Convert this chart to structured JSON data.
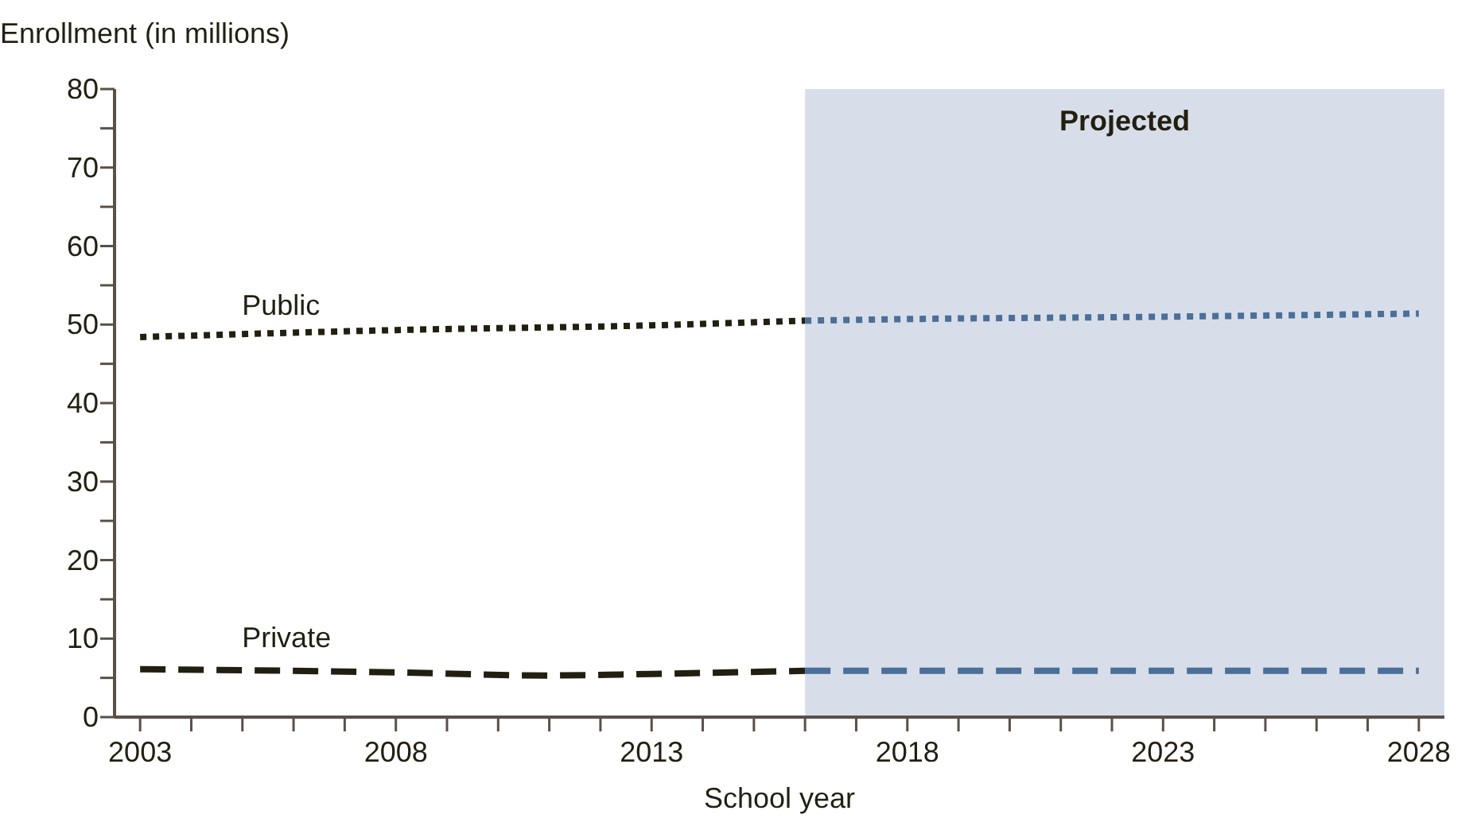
{
  "chart_data": {
    "type": "line",
    "xlabel": "School year",
    "ylabel": "Enrollment (in millions)",
    "xlim": [
      2002.5,
      2028.5
    ],
    "ylim": [
      0,
      80
    ],
    "xticks": [
      2003,
      {
        "value": 2004,
        "label": null
      },
      {
        "value": 2005,
        "label": null
      },
      {
        "value": 2006,
        "label": null
      },
      {
        "value": 2007,
        "label": null
      },
      2008,
      {
        "value": 2009,
        "label": null
      },
      {
        "value": 2010,
        "label": null
      },
      {
        "value": 2011,
        "label": null
      },
      {
        "value": 2012,
        "label": null
      },
      2013,
      {
        "value": 2014,
        "label": null
      },
      {
        "value": 2015,
        "label": null
      },
      {
        "value": 2016,
        "label": null
      },
      {
        "value": 2017,
        "label": null
      },
      2018,
      {
        "value": 2019,
        "label": null
      },
      {
        "value": 2020,
        "label": null
      },
      {
        "value": 2021,
        "label": null
      },
      {
        "value": 2022,
        "label": null
      },
      2023,
      {
        "value": 2024,
        "label": null
      },
      {
        "value": 2025,
        "label": null
      },
      {
        "value": 2026,
        "label": null
      },
      {
        "value": 2027,
        "label": null
      },
      2028
    ],
    "yticks": [
      0,
      {
        "value": 5,
        "label": null
      },
      10,
      {
        "value": 15,
        "label": null
      },
      20,
      {
        "value": 25,
        "label": null
      },
      30,
      {
        "value": 35,
        "label": null
      },
      40,
      {
        "value": 45,
        "label": null
      },
      50,
      {
        "value": 55,
        "label": null
      },
      60,
      {
        "value": 65,
        "label": null
      },
      70,
      {
        "value": 75,
        "label": null
      },
      80
    ],
    "grid": false,
    "bands": [
      {
        "axis": "x",
        "from": 2016,
        "to": 2028.5,
        "label": "Projected",
        "color": "#d8dee9"
      }
    ],
    "series": [
      {
        "name": "Public",
        "color": "#231f10",
        "line_style": "dotted",
        "x": [
          2003,
          2008,
          2013,
          2016
        ],
        "values": [
          48.4,
          49.3,
          49.9,
          50.5
        ]
      },
      {
        "color": "#4a6f99",
        "line_style": "dotted",
        "x": [
          2016,
          2018,
          2023,
          2028
        ],
        "values": [
          50.5,
          50.7,
          51.0,
          51.4
        ]
      },
      {
        "name": "Private",
        "color": "#231f10",
        "line_style": "dashed",
        "x": [
          2003,
          2008,
          2011,
          2013,
          2016
        ],
        "values": [
          6.1,
          5.7,
          5.3,
          5.5,
          5.9
        ]
      },
      {
        "color": "#4a6f99",
        "line_style": "dashed",
        "x": [
          2016,
          2028
        ],
        "values": [
          5.9,
          5.9
        ]
      }
    ]
  }
}
